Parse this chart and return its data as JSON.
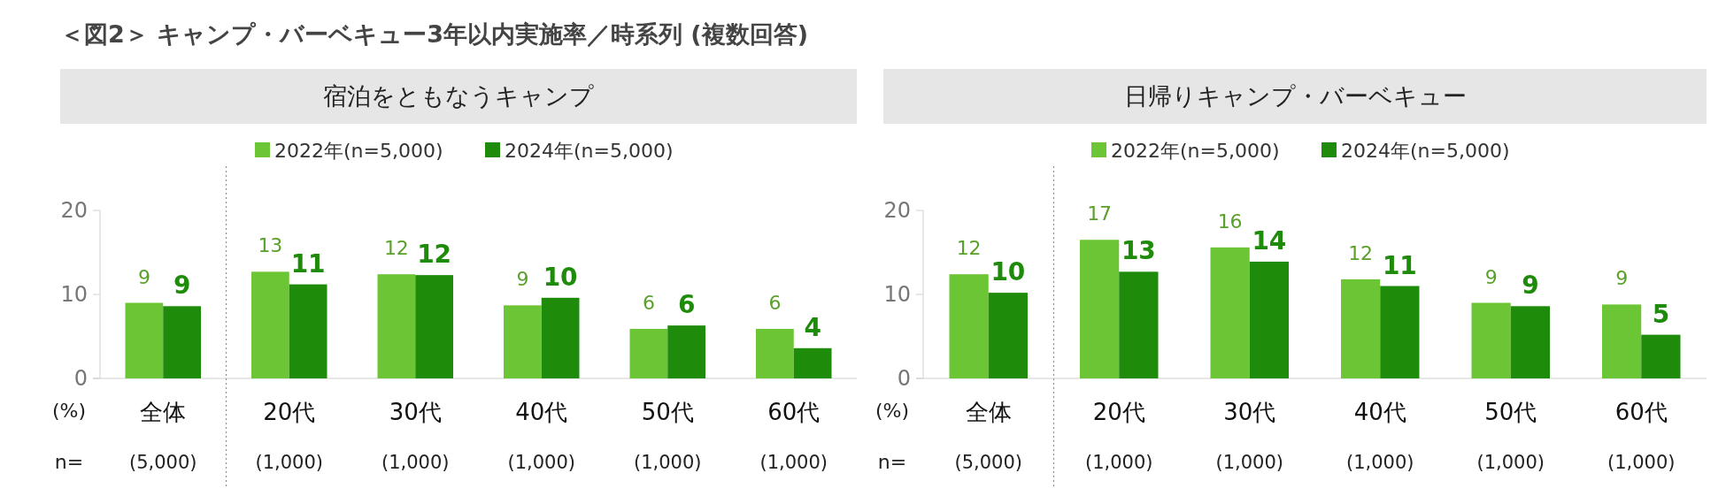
{
  "chart_data": [
    {
      "type": "bar",
      "subtitle": "＜図2＞ キャンプ・バーベキュー3年以内実施率／時系列 (複数回答)",
      "title": "宿泊をともなうキャンプ",
      "categories": [
        "全体",
        "20代",
        "30代",
        "40代",
        "50代",
        "60代"
      ],
      "series": [
        {
          "name": "2022年(n=5,000)",
          "color": "#6cc534",
          "values": [
            9.0,
            12.7,
            12.4,
            8.7,
            5.9,
            5.9
          ],
          "value_labels": [
            "9",
            "13",
            "12",
            "9",
            "6",
            "6"
          ]
        },
        {
          "name": "2024年(n=5,000)",
          "color": "#1e8c0a",
          "values": [
            8.6,
            11.2,
            12.3,
            9.6,
            6.3,
            3.6
          ],
          "value_labels": [
            "9",
            "11",
            "12",
            "10",
            "6",
            "4"
          ]
        }
      ],
      "ylim": [
        0,
        20
      ],
      "yticks": [
        0,
        10,
        20
      ],
      "legend": "top",
      "grid": false,
      "annotations": [
        "(%)",
        "n=",
        "(5,000)",
        "(1,000)",
        "(1,000)",
        "(1,000)",
        "(1,000)",
        "(1,000)"
      ]
    },
    {
      "type": "bar",
      "title": "日帰りキャンプ・バーベキュー",
      "categories": [
        "全体",
        "20代",
        "30代",
        "40代",
        "50代",
        "60代"
      ],
      "series": [
        {
          "name": "2022年(n=5,000)",
          "color": "#6cc534",
          "values": [
            12.4,
            16.5,
            15.6,
            11.8,
            9.0,
            8.8
          ],
          "value_labels": [
            "12",
            "17",
            "16",
            "12",
            "9",
            "9"
          ]
        },
        {
          "name": "2024年(n=5,000)",
          "color": "#1e8c0a",
          "values": [
            10.2,
            12.7,
            13.9,
            11.0,
            8.6,
            5.2
          ],
          "value_labels": [
            "10",
            "13",
            "14",
            "11",
            "9",
            "5"
          ]
        }
      ],
      "ylim": [
        0,
        20
      ],
      "yticks": [
        0,
        10,
        20
      ],
      "legend": "top",
      "grid": false,
      "annotations": [
        "(%)",
        "n=",
        "(5,000)",
        "(1,000)",
        "(1,000)",
        "(1,000)",
        "(1,000)",
        "(1,000)"
      ]
    }
  ]
}
